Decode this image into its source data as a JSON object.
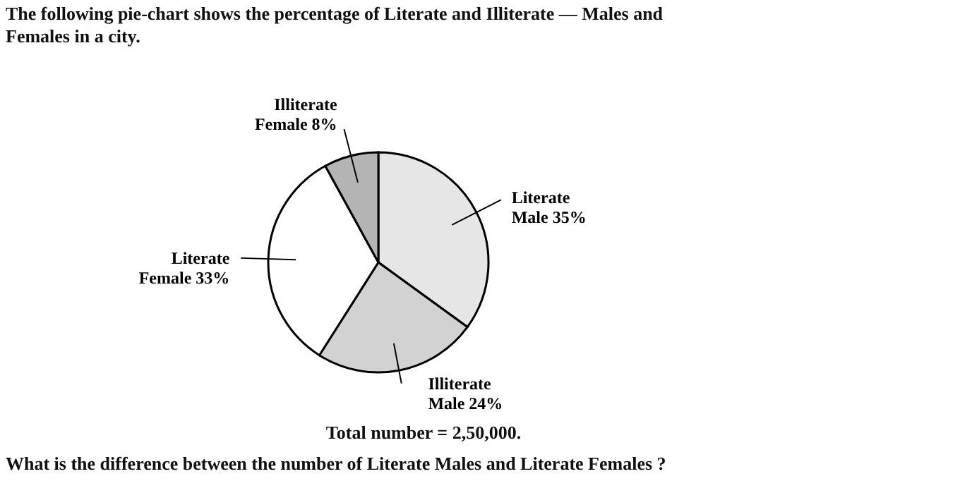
{
  "chart_data": {
    "type": "pie",
    "title": "The following pie-chart shows the percentage of Literate and Illiterate — Males and Females in a city.",
    "categories": [
      "Literate Male",
      "Illiterate Male",
      "Literate Female",
      "Illiterate Female"
    ],
    "values": [
      35,
      24,
      33,
      8
    ],
    "colors": [
      "#e6e6e6",
      "#d2d2d2",
      "#ffffff",
      "#b4b4b4"
    ],
    "value_labels": [
      "35%",
      "24%",
      "33%",
      "8%"
    ],
    "annotations": [
      "Total number = 2,50,000.",
      "What is the difference between the number of Literate Males and Literate Females ?"
    ]
  }
}
